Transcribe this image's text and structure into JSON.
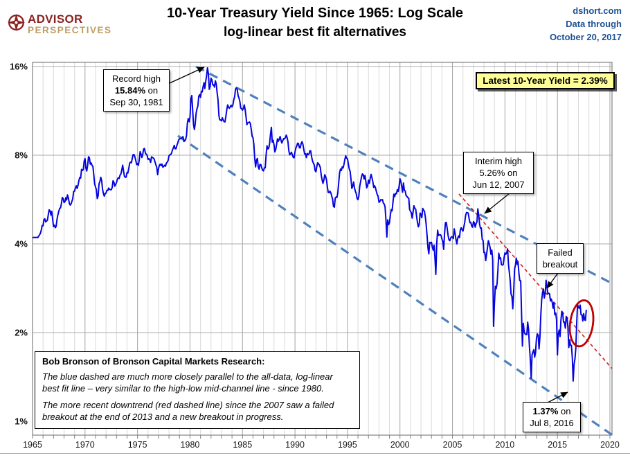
{
  "header": {
    "logo": {
      "word1": "ADVISOR",
      "word2": "PERSPECTIVES"
    },
    "title_line1": "10-Year Treasury Yield Since 1965: Log Scale",
    "title_line2": "log-linear best fit alternatives",
    "source_line1": "dshort.com",
    "source_line2": "Data through",
    "source_line3": "October 20, 2017"
  },
  "badge": {
    "text": "Latest 10-Year Yield = 2.39%",
    "bg_color": "#FFFF99"
  },
  "annotations": {
    "record_high": {
      "line1": "Record high",
      "value": "15.84%",
      "suffix": " on",
      "date": "Sep 30, 1981"
    },
    "interim_high": {
      "line1": "Interim high",
      "line2": "5.26% on",
      "date": "Jun 12, 2007"
    },
    "failed_breakout": {
      "line1": "Failed",
      "line2": "breakout"
    },
    "low_2016": {
      "value": "1.37%",
      "suffix": " on",
      "date": "Jul 8, 2016"
    }
  },
  "note_box": {
    "title": "Bob Bronson of Bronson Capital Markets Research:",
    "para1": "The blue dashed are much more closely parallel to the all-data, log-linear best fit line – very similar to the high-low mid-channel line - since 1980.",
    "para2": "The more recent downtrend (red dashed line) since the 2007 saw a failed breakout at the end of 2013 and a new breakout in progress."
  },
  "chart_data": {
    "type": "line",
    "title": "10-Year Treasury Yield Since 1965: Log Scale",
    "subtitle": "log-linear best fit alternatives",
    "y_scale": "log",
    "x_ticks": [
      1965,
      1970,
      1975,
      1980,
      1985,
      1990,
      1995,
      2000,
      2005,
      2010,
      2015,
      2020
    ],
    "y_ticks_pct": [
      16,
      8,
      4,
      2,
      1
    ],
    "x_range": [
      1965,
      2020.3
    ],
    "grid": "yearly vertical, power-of-2 horizontal",
    "legend_position": "none",
    "latest": {
      "date": "October 20, 2017",
      "value_pct": 2.39
    },
    "extremes": [
      {
        "label": "Record high",
        "pct": 15.84,
        "date": "Sep 30, 1981"
      },
      {
        "label": "Interim high",
        "pct": 5.26,
        "date": "Jun 12, 2007"
      },
      {
        "label": "Low",
        "pct": 1.37,
        "date": "Jul 8, 2016"
      }
    ],
    "series": [
      {
        "name": "10-Year Treasury Yield",
        "color": "#0404E0",
        "start_year": 1965,
        "points_per_year": 12,
        "values_pct": [
          4.19,
          4.21,
          4.21,
          4.2,
          4.21,
          4.21,
          4.2,
          4.25,
          4.29,
          4.35,
          4.45,
          4.62,
          4.61,
          4.83,
          4.87,
          4.75,
          4.78,
          4.81,
          5.02,
          5.22,
          5.18,
          5.01,
          5.16,
          4.84,
          4.58,
          4.63,
          4.54,
          4.59,
          4.85,
          5.02,
          5.16,
          5.28,
          5.3,
          5.48,
          5.75,
          5.7,
          5.53,
          5.56,
          5.74,
          5.64,
          5.87,
          5.72,
          5.5,
          5.42,
          5.46,
          5.58,
          5.7,
          6.03,
          6.04,
          6.19,
          6.3,
          6.17,
          6.32,
          6.57,
          6.72,
          6.69,
          7.16,
          7.1,
          7.14,
          7.65,
          7.79,
          7.24,
          7.07,
          7.39,
          7.91,
          7.84,
          7.46,
          7.53,
          7.39,
          7.33,
          6.84,
          6.39,
          6.24,
          6.11,
          5.7,
          5.83,
          6.39,
          6.52,
          6.73,
          6.58,
          6.14,
          5.93,
          5.81,
          5.93,
          5.95,
          6.08,
          6.07,
          6.19,
          6.13,
          6.11,
          6.11,
          6.21,
          6.55,
          6.48,
          6.28,
          6.36,
          6.46,
          6.64,
          6.71,
          6.67,
          6.85,
          6.9,
          7.13,
          7.4,
          7.09,
          6.79,
          6.73,
          6.74,
          6.99,
          6.96,
          7.21,
          7.51,
          7.58,
          7.54,
          7.81,
          8.04,
          8.04,
          7.9,
          7.68,
          7.43,
          7.5,
          7.39,
          7.73,
          8.23,
          8.06,
          7.86,
          8.06,
          8.4,
          8.43,
          8.14,
          8.05,
          8.0,
          7.74,
          7.79,
          7.73,
          7.56,
          7.9,
          7.86,
          7.83,
          7.77,
          7.59,
          7.41,
          7.29,
          6.87,
          7.21,
          7.39,
          7.46,
          7.37,
          7.46,
          7.28,
          7.33,
          7.4,
          7.34,
          7.52,
          7.58,
          7.69,
          7.96,
          8.03,
          8.04,
          8.15,
          8.35,
          8.46,
          8.64,
          8.41,
          8.42,
          8.64,
          8.81,
          9.01,
          9.1,
          9.1,
          9.12,
          9.18,
          9.25,
          8.91,
          8.95,
          9.03,
          9.33,
          10.3,
          10.65,
          10.39,
          10.8,
          12.41,
          12.75,
          11.47,
          10.18,
          9.78,
          10.25,
          11.1,
          11.51,
          11.75,
          12.68,
          12.84,
          12.57,
          13.19,
          13.12,
          13.68,
          14.1,
          13.47,
          14.28,
          14.94,
          15.84,
          15.15,
          13.39,
          13.72,
          14.59,
          14.43,
          13.86,
          13.87,
          13.62,
          14.3,
          13.95,
          13.06,
          12.34,
          10.91,
          10.55,
          10.54,
          10.46,
          10.72,
          10.51,
          10.4,
          10.38,
          10.85,
          11.38,
          11.85,
          11.65,
          11.54,
          11.69,
          11.83,
          11.67,
          11.84,
          12.32,
          12.63,
          13.41,
          13.56,
          13.36,
          12.72,
          12.52,
          12.16,
          11.57,
          11.5,
          11.38,
          11.51,
          11.86,
          11.43,
          10.85,
          10.16,
          10.31,
          10.33,
          10.37,
          10.24,
          9.78,
          9.26,
          9.19,
          8.7,
          7.78,
          7.3,
          7.71,
          7.8,
          7.3,
          7.17,
          7.45,
          7.43,
          7.25,
          7.11,
          7.08,
          7.25,
          7.25,
          8.02,
          8.61,
          8.4,
          8.45,
          8.76,
          9.42,
          9.95,
          8.86,
          8.99,
          8.67,
          8.21,
          8.37,
          8.72,
          9.09,
          8.92,
          9.06,
          9.26,
          8.98,
          8.8,
          8.96,
          9.11,
          9.09,
          9.17,
          9.36,
          9.18,
          8.86,
          8.28,
          8.02,
          8.11,
          8.19,
          8.01,
          7.87,
          7.84,
          8.21,
          8.47,
          8.59,
          8.79,
          8.76,
          8.48,
          8.47,
          8.75,
          8.89,
          8.72,
          8.39,
          8.08,
          8.09,
          7.85,
          8.11,
          8.04,
          8.07,
          8.28,
          8.27,
          7.9,
          7.65,
          7.53,
          7.42,
          7.09,
          7.03,
          7.34,
          7.54,
          7.48,
          7.39,
          7.26,
          6.84,
          6.59,
          6.42,
          6.59,
          6.87,
          6.77,
          6.6,
          6.26,
          5.98,
          5.97,
          6.04,
          5.96,
          5.81,
          5.68,
          5.36,
          5.33,
          5.72,
          5.77,
          5.75,
          5.97,
          6.48,
          6.97,
          7.18,
          7.1,
          7.3,
          7.24,
          7.46,
          7.74,
          7.96,
          7.81,
          7.78,
          7.47,
          7.2,
          7.06,
          6.63,
          6.17,
          6.28,
          6.49,
          6.2,
          6.04,
          5.93,
          5.71,
          5.65,
          5.81,
          6.27,
          6.51,
          6.74,
          6.91,
          6.87,
          6.64,
          6.83,
          6.53,
          6.2,
          6.3,
          6.58,
          6.42,
          6.69,
          6.89,
          6.71,
          6.49,
          6.22,
          6.3,
          6.21,
          6.03,
          5.88,
          5.81,
          5.54,
          5.57,
          5.65,
          5.64,
          5.65,
          5.5,
          5.46,
          5.34,
          4.81,
          4.22,
          4.83,
          4.65,
          4.72,
          5.0,
          5.23,
          5.18,
          5.54,
          5.9,
          5.79,
          5.94,
          5.92,
          6.11,
          6.03,
          6.28,
          6.66,
          6.52,
          6.26,
          5.99,
          6.44,
          6.1,
          6.05,
          5.83,
          5.8,
          5.74,
          5.72,
          5.24,
          5.16,
          5.1,
          4.89,
          5.14,
          5.39,
          5.28,
          5.24,
          4.97,
          4.73,
          4.57,
          4.65,
          5.09,
          5.04,
          4.91,
          5.28,
          5.21,
          5.16,
          4.93,
          4.65,
          4.26,
          3.87,
          3.7,
          4.05,
          4.03,
          4.05,
          3.9,
          3.81,
          3.96,
          3.57,
          3.15,
          3.98,
          4.45,
          4.27,
          4.29,
          4.3,
          4.27,
          4.15,
          4.08,
          3.83,
          4.35,
          4.72,
          4.73,
          4.5,
          4.28,
          4.13,
          4.1,
          4.19,
          4.23,
          4.22,
          4.17,
          4.5,
          4.34,
          4.14,
          4.0,
          4.18,
          4.26,
          4.2,
          4.46,
          4.54,
          4.47,
          4.42,
          4.57,
          4.72,
          4.99,
          5.11,
          5.11,
          5.09,
          4.88,
          4.72,
          4.73,
          4.6,
          4.56,
          4.76,
          4.72,
          4.56,
          4.69,
          4.75,
          5.26,
          5.0,
          4.67,
          4.52,
          4.53,
          4.15,
          4.1,
          3.74,
          3.74,
          3.51,
          3.68,
          3.88,
          4.1,
          4.01,
          3.89,
          3.69,
          3.81,
          3.53,
          2.1,
          2.52,
          2.87,
          2.82,
          2.93,
          3.29,
          3.72,
          3.56,
          3.59,
          3.4,
          3.39,
          3.4,
          3.59,
          3.73,
          3.69,
          3.73,
          3.85,
          3.42,
          3.2,
          3.01,
          2.7,
          2.65,
          2.41,
          2.76,
          3.29,
          3.39,
          3.58,
          3.41,
          3.46,
          3.17,
          3.0,
          3.0,
          2.3,
          1.8,
          2.15,
          2.01,
          1.98,
          1.97,
          1.97,
          2.17,
          2.05,
          1.8,
          1.62,
          1.4,
          1.68,
          1.72,
          1.75,
          1.65,
          1.72,
          1.91,
          1.98,
          1.96,
          1.76,
          1.93,
          2.3,
          2.58,
          2.74,
          2.81,
          2.62,
          2.72,
          3.01,
          2.86,
          2.71,
          2.72,
          2.71,
          2.56,
          2.6,
          2.54,
          2.42,
          2.53,
          2.3,
          2.33,
          2.21,
          1.68,
          1.98,
          2.04,
          1.94,
          2.2,
          2.36,
          2.32,
          2.17,
          2.17,
          2.07,
          2.26,
          2.24,
          2.09,
          1.78,
          1.89,
          1.81,
          1.81,
          1.64,
          1.37,
          1.56,
          1.63,
          1.76,
          2.14,
          2.49,
          2.43,
          2.42,
          2.48,
          2.3,
          2.3,
          2.19,
          2.32,
          2.21,
          2.2,
          2.39
        ]
      }
    ],
    "trendlines": [
      {
        "name": "upper log-linear channel",
        "color": "#4E81BD",
        "dash": "long",
        "from": {
          "year": 1980.57,
          "pct": 16.0
        },
        "to": {
          "year": 2020.33,
          "pct": 2.92
        }
      },
      {
        "name": "lower log-linear channel",
        "color": "#4E81BD",
        "dash": "long",
        "from": {
          "year": 1978.85,
          "pct": 9.31
        },
        "to": {
          "year": 2020.2,
          "pct": 0.9
        }
      },
      {
        "name": "post-2007 downtrend",
        "color": "#CC2020",
        "dash": "short",
        "from": {
          "year": 2005.62,
          "pct": 5.91
        },
        "to": {
          "year": 2020.2,
          "pct": 1.51
        }
      }
    ],
    "highlight_ellipse": {
      "year": 2017.3,
      "pct": 2.15,
      "color": "#C00000"
    }
  }
}
